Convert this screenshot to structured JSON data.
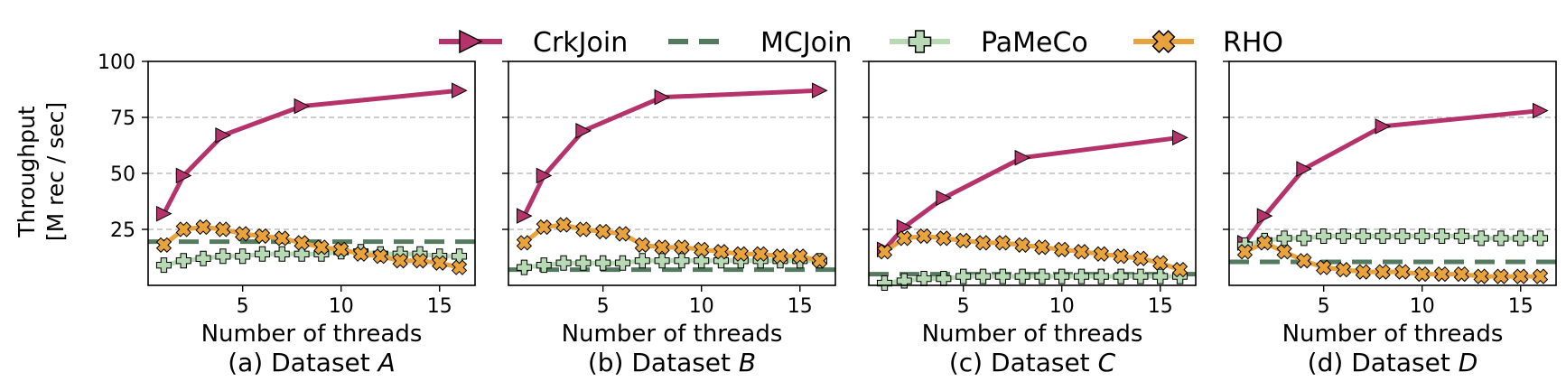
{
  "figure": {
    "ylabel_line1": "Throughput",
    "ylabel_line2": "[M rec / sec]"
  },
  "legend": [
    {
      "name": "CrkJoin",
      "color": "#b5336b",
      "marker": "triangle-right",
      "dash": "solid"
    },
    {
      "name": "MCJoin",
      "color": "#537a5e",
      "marker": "none",
      "dash": "dashed"
    },
    {
      "name": "PaMeCo",
      "color": "#b7d9b4",
      "marker": "plus",
      "dash": "solid"
    },
    {
      "name": "RHO",
      "color": "#e8a33d",
      "marker": "x",
      "dash": "solid"
    }
  ],
  "chart_data": [
    {
      "type": "line",
      "caption_prefix": "(a) Dataset ",
      "caption_var": "A",
      "xlabel": "Number of threads",
      "ylabel": "Throughput [M rec / sec]",
      "xlim": [
        0.2,
        16.8
      ],
      "ylim": [
        0,
        100
      ],
      "xticks": [
        5,
        10,
        15
      ],
      "yticks": [
        25,
        50,
        75,
        100
      ],
      "grid": "horizontal-dashed",
      "series": [
        {
          "name": "CrkJoin",
          "x": [
            1,
            2,
            4,
            8,
            16
          ],
          "y": [
            32,
            49,
            67,
            80,
            87
          ]
        },
        {
          "name": "MCJoin",
          "x": [
            0.2,
            16.8
          ],
          "y": [
            19.5,
            19.5
          ]
        },
        {
          "name": "PaMeCo",
          "x": [
            1,
            2,
            3,
            4,
            5,
            6,
            7,
            8,
            9,
            10,
            11,
            12,
            13,
            14,
            15,
            16
          ],
          "y": [
            9,
            11,
            12,
            13,
            13,
            14,
            14,
            14,
            14,
            15,
            15,
            14,
            14,
            14,
            13,
            13
          ]
        },
        {
          "name": "RHO",
          "x": [
            1,
            2,
            3,
            4,
            5,
            6,
            7,
            8,
            9,
            10,
            11,
            12,
            13,
            14,
            15,
            16
          ],
          "y": [
            18,
            25,
            26,
            25,
            23,
            22,
            21,
            19,
            17,
            16,
            14,
            13,
            11,
            11,
            10,
            8
          ]
        }
      ]
    },
    {
      "type": "line",
      "caption_prefix": "(b) Dataset ",
      "caption_var": "B",
      "xlabel": "Number of threads",
      "xlim": [
        0.2,
        16.8
      ],
      "ylim": [
        0,
        100
      ],
      "xticks": [
        5,
        10,
        15
      ],
      "yticks": [
        25,
        50,
        75,
        100
      ],
      "grid": "horizontal-dashed",
      "series": [
        {
          "name": "CrkJoin",
          "x": [
            1,
            2,
            4,
            8,
            16
          ],
          "y": [
            31,
            49,
            69,
            84,
            87
          ]
        },
        {
          "name": "MCJoin",
          "x": [
            0.2,
            16.8
          ],
          "y": [
            7,
            7
          ]
        },
        {
          "name": "PaMeCo",
          "x": [
            1,
            2,
            3,
            4,
            5,
            6,
            7,
            8,
            9,
            10,
            11,
            12,
            13,
            14,
            15,
            16
          ],
          "y": [
            8,
            9,
            10,
            10,
            10,
            10,
            11,
            11,
            11,
            11,
            11,
            11,
            11,
            11,
            11,
            11
          ]
        },
        {
          "name": "RHO",
          "x": [
            1,
            2,
            3,
            4,
            5,
            6,
            7,
            8,
            9,
            10,
            11,
            12,
            13,
            14,
            15,
            16
          ],
          "y": [
            19,
            26,
            27,
            25,
            24,
            23,
            18,
            17,
            17,
            16,
            15,
            14,
            14,
            13,
            13,
            11
          ]
        }
      ]
    },
    {
      "type": "line",
      "caption_prefix": "(c) Dataset ",
      "caption_var": "C",
      "xlabel": "Number of threads",
      "xlim": [
        0.2,
        16.8
      ],
      "ylim": [
        0,
        100
      ],
      "xticks": [
        5,
        10,
        15
      ],
      "yticks": [
        25,
        50,
        75,
        100
      ],
      "grid": "horizontal-dashed",
      "series": [
        {
          "name": "CrkJoin",
          "x": [
            1,
            2,
            4,
            8,
            16
          ],
          "y": [
            16,
            26,
            39,
            57,
            66
          ]
        },
        {
          "name": "MCJoin",
          "x": [
            0.2,
            16.8
          ],
          "y": [
            5,
            5
          ]
        },
        {
          "name": "PaMeCo",
          "x": [
            1,
            2,
            3,
            4,
            5,
            6,
            7,
            8,
            9,
            10,
            11,
            12,
            13,
            14,
            15,
            16
          ],
          "y": [
            1,
            2,
            3,
            3,
            4,
            4,
            4,
            4,
            4,
            4,
            4,
            4,
            4,
            4,
            4,
            4
          ]
        },
        {
          "name": "RHO",
          "x": [
            1,
            2,
            3,
            4,
            5,
            6,
            7,
            8,
            9,
            10,
            11,
            12,
            13,
            14,
            15,
            16
          ],
          "y": [
            15,
            21,
            22,
            21,
            20,
            19,
            19,
            18,
            17,
            16,
            15,
            14,
            13,
            12,
            10,
            7
          ]
        }
      ]
    },
    {
      "type": "line",
      "caption_prefix": "(d) Dataset ",
      "caption_var": "D",
      "xlabel": "Number of threads",
      "xlim": [
        0.2,
        16.8
      ],
      "ylim": [
        0,
        100
      ],
      "xticks": [
        5,
        10,
        15
      ],
      "yticks": [
        25,
        50,
        75,
        100
      ],
      "grid": "horizontal-dashed",
      "series": [
        {
          "name": "CrkJoin",
          "x": [
            1,
            2,
            4,
            8,
            16
          ],
          "y": [
            19,
            31,
            52,
            71,
            78
          ]
        },
        {
          "name": "MCJoin",
          "x": [
            0.2,
            16.8
          ],
          "y": [
            10.5,
            10.5
          ]
        },
        {
          "name": "PaMeCo",
          "x": [
            1,
            2,
            3,
            4,
            5,
            6,
            7,
            8,
            9,
            10,
            11,
            12,
            13,
            14,
            15,
            16
          ],
          "y": [
            18,
            20,
            21,
            21,
            22,
            22,
            22,
            22,
            22,
            22,
            22,
            22,
            21,
            21,
            21,
            21
          ]
        },
        {
          "name": "RHO",
          "x": [
            1,
            2,
            3,
            4,
            5,
            6,
            7,
            8,
            9,
            10,
            11,
            12,
            13,
            14,
            15,
            16
          ],
          "y": [
            15,
            19,
            15,
            11,
            8,
            7,
            6,
            6,
            6,
            5,
            5,
            5,
            4,
            4,
            4,
            4
          ]
        }
      ]
    }
  ]
}
